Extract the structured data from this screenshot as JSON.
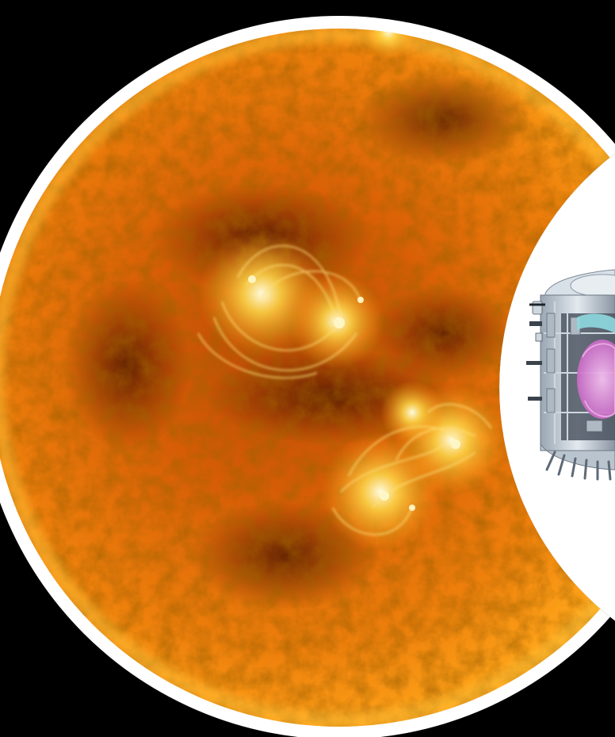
{
  "scene": {
    "background_color": "#000000",
    "ring_color": "#ffffff",
    "sun": {
      "subject": "sun-disk",
      "colors": [
        "#fff6b0",
        "#ffcc33",
        "#ff9a10",
        "#e66a08",
        "#b84a05",
        "#7a2a02",
        "#4a1400"
      ]
    },
    "reactor": {
      "subject": "tokamak-cutaway",
      "colors": [
        "#e8edf2",
        "#bfcad4",
        "#8d99a6",
        "#4c5661",
        "#d98ad6",
        "#8fd9e0"
      ]
    },
    "inset_background": "#ffffff"
  }
}
